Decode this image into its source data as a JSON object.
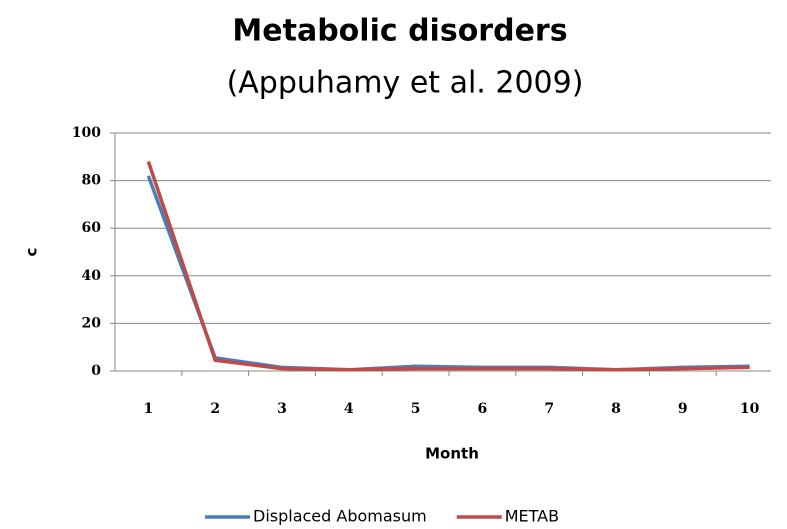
{
  "chart_data": {
    "type": "line",
    "title": "Metabolic disorders",
    "subtitle": "(Appuhamy et al. 2009)",
    "x_label": "Month",
    "y_label": "c",
    "categories": [
      "1",
      "2",
      "3",
      "4",
      "5",
      "6",
      "7",
      "8",
      "9",
      "10"
    ],
    "series": [
      {
        "name": "Displaced Abomasum",
        "color": "#4a7ebb",
        "values": [
          82,
          5.5,
          1.5,
          0.5,
          2,
          1.5,
          1.5,
          0.5,
          1.5,
          2
        ]
      },
      {
        "name": "METAB",
        "color": "#be4b48",
        "values": [
          88,
          4.5,
          1,
          0.5,
          1,
          1,
          1,
          0.5,
          1,
          1.5
        ]
      }
    ],
    "ylim": [
      0,
      100
    ],
    "yticks": [
      0,
      20,
      40,
      60,
      80,
      100
    ],
    "grid": true,
    "legend": "bottom"
  }
}
